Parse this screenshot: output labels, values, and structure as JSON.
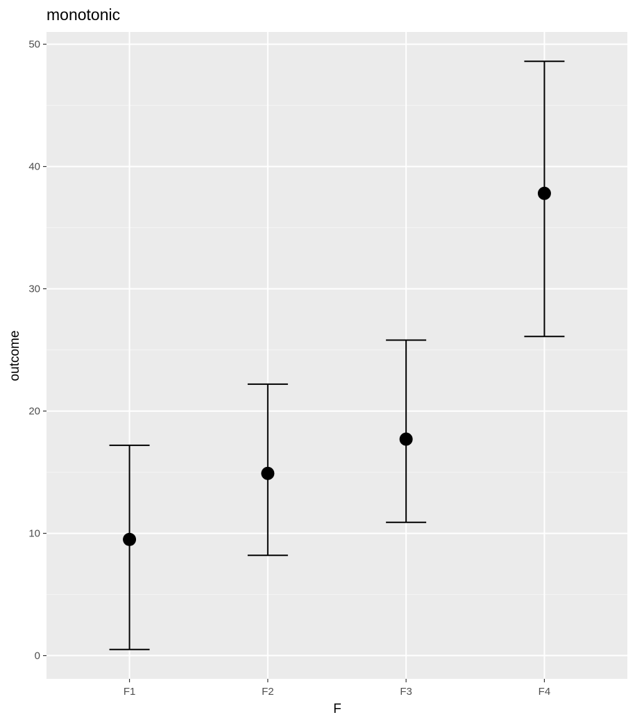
{
  "chart_data": {
    "type": "errorbar",
    "title": "monotonic",
    "xlabel": "F",
    "ylabel": "outcome",
    "categories": [
      "F1",
      "F2",
      "F3",
      "F4"
    ],
    "values": [
      9.5,
      14.9,
      17.7,
      37.8
    ],
    "lower": [
      0.5,
      8.2,
      10.9,
      26.1
    ],
    "upper": [
      17.2,
      22.2,
      25.8,
      48.6
    ],
    "ylim": [
      -1.9,
      51.0
    ],
    "yticks": [
      0,
      10,
      20,
      30,
      40,
      50
    ],
    "grid": true,
    "legend": "none",
    "colors": {
      "panel": "#ebebeb",
      "grid_major": "#ffffff",
      "grid_minor": "#f5f5f5",
      "marks": "#000000",
      "tick": "#333333"
    }
  }
}
